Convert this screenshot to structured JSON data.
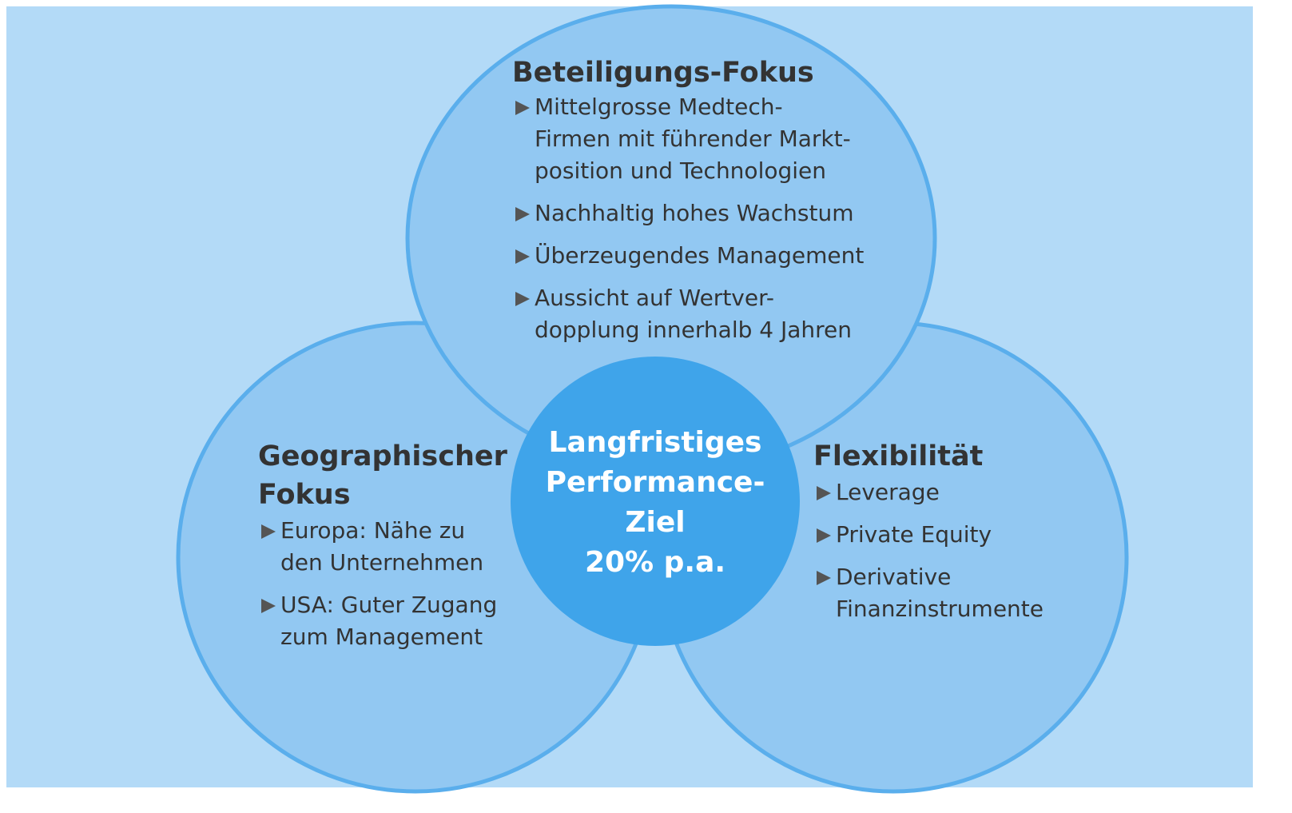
{
  "nodes": [
    {
      "title": [
        "Beteiligungs-Fokus"
      ],
      "bullets": [
        [
          "Mittelgrosse Medtech-",
          "Firmen mit führender Markt-",
          "position und Technologien"
        ],
        [
          "Nachhaltig hohes Wachstum"
        ],
        [
          "Überzeugendes Management"
        ],
        [
          "Aussicht auf Wertver-",
          "dopplung innerhalb 4 Jahren"
        ]
      ]
    },
    {
      "title": [
        "Geographischer",
        "Fokus"
      ],
      "bullets": [
        [
          "Europa: Nähe zu",
          "den Unternehmen"
        ],
        [
          "USA: Guter Zugang",
          "zum Management"
        ]
      ]
    },
    {
      "title": [
        "Flexibilität"
      ],
      "bullets": [
        [
          "Leverage"
        ],
        [
          "Private Equity"
        ],
        [
          "Derivative",
          "Finanzinstrumente"
        ]
      ]
    }
  ],
  "center": {
    "lines": [
      "Langfristiges",
      "Performance-",
      "Ziel",
      "20% p.a."
    ]
  }
}
